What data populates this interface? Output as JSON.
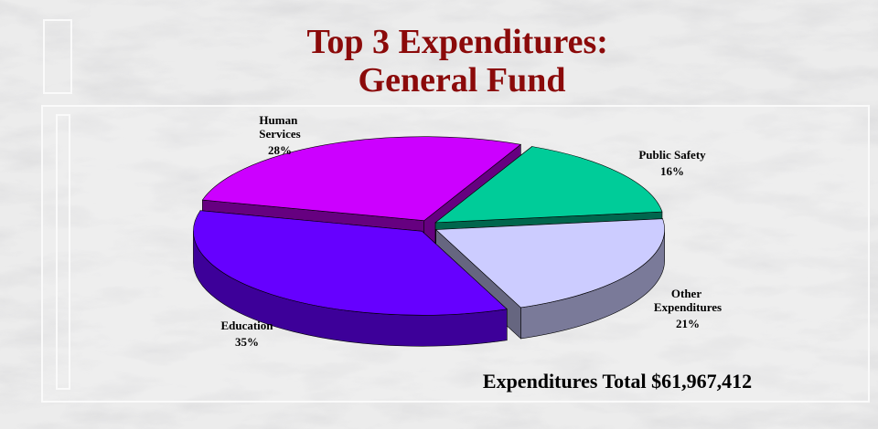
{
  "chart_data": {
    "type": "pie3d",
    "title": "Top 3 Expenditures: General Fund",
    "categories": [
      "Public Safety",
      "Other Expenditures",
      "Education",
      "Human Services"
    ],
    "values": [
      16,
      21,
      35,
      28
    ],
    "value_labels": [
      "16%",
      "21%",
      "35%",
      "28%"
    ],
    "colors": [
      "#00cc99",
      "#ccccff",
      "#6600ff",
      "#cc00ff"
    ],
    "annotation": "Expenditures Total $61,967,412"
  }
}
